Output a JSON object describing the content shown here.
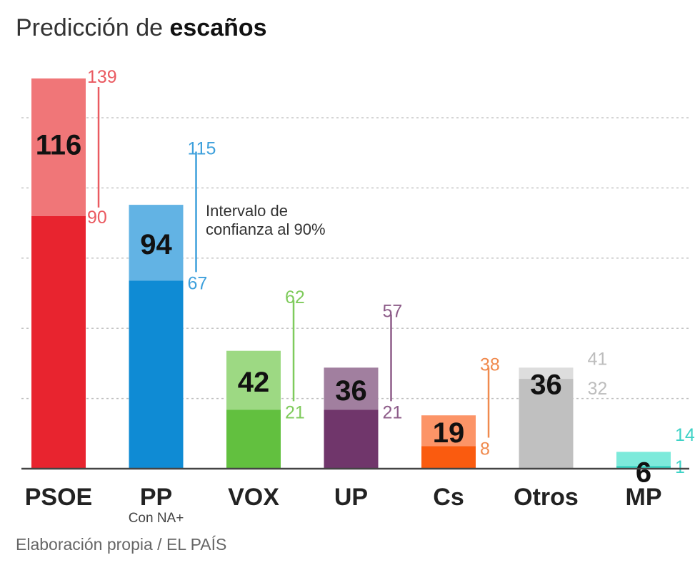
{
  "header": {
    "title_regular": "Predicción de",
    "title_bold": "escaños"
  },
  "footer": {
    "source": "Elaboración propia / EL PAÍS"
  },
  "annotation": {
    "line1": "Intervalo de",
    "line2": "confianza al 90%"
  },
  "chart_data": {
    "type": "bar",
    "title": "Predicción de escaños",
    "ylabel": "",
    "xlabel": "",
    "ylim": [
      0,
      150
    ],
    "grid": true,
    "categories": [
      "PSOE",
      "PP",
      "VOX",
      "UP",
      "Cs",
      "Otros",
      "MP"
    ],
    "sublabels": [
      "",
      "Con NA+",
      "",
      "",
      "",
      "",
      ""
    ],
    "values": [
      116,
      94,
      42,
      36,
      19,
      36,
      6
    ],
    "interval_low": [
      90,
      67,
      21,
      21,
      8,
      32,
      1
    ],
    "interval_high": [
      139,
      115,
      62,
      57,
      38,
      41,
      14
    ],
    "colors_dark": [
      "#e8242f",
      "#0f8bd4",
      "#62c03f",
      "#70366b",
      "#fa5b0f",
      "#c0c0c0",
      "#3dd6c4"
    ],
    "colors_light": [
      "#f07678",
      "#62b3e4",
      "#9dd983",
      "#a17f9f",
      "#fc9467",
      "#dddddd",
      "#7deadb"
    ],
    "colors_text": [
      "#ea5a61",
      "#3ea0dc",
      "#7fcb5c",
      "#8d5c89",
      "#f08a4e",
      "#bdbdbd",
      "#3dd2c6"
    ]
  }
}
